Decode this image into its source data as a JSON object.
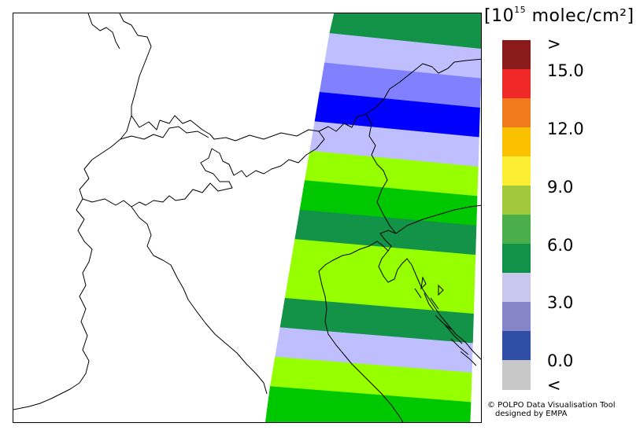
{
  "legend": {
    "title_prefix": "[10",
    "title_exp": "15",
    "title_suffix": " molec/cm²]",
    "colors": [
      "#8b1a1a",
      "#f02828",
      "#f07a1e",
      "#fbc100",
      "#fbee33",
      "#a2c93b",
      "#4aae4a",
      "#109249",
      "#c8c8ee",
      "#8585c8",
      "#2e4fa5",
      "#c8c8c8"
    ],
    "labels": [
      ">",
      "15.0",
      "12.0",
      "9.0",
      "6.0",
      "3.0",
      "0.0",
      "<"
    ]
  },
  "bands": [
    {
      "color": "#139347",
      "value": 5.5
    },
    {
      "color": "#bfbfff",
      "value": 3.5
    },
    {
      "color": "#8181ff",
      "value": 2.0
    },
    {
      "color": "#0000ff",
      "value": 0.5
    },
    {
      "color": "#bfbfff",
      "value": 3.5
    },
    {
      "color": "#96ff00",
      "value": 7.5
    },
    {
      "color": "#00c800",
      "value": 6.5
    },
    {
      "color": "#139347",
      "value": 5.5
    },
    {
      "color": "#96ff00",
      "value": 7.5
    },
    {
      "color": "#96ff00",
      "value": 7.5
    },
    {
      "color": "#139347",
      "value": 5.5
    },
    {
      "color": "#bfbfff",
      "value": 3.5
    },
    {
      "color": "#96ff00",
      "value": 7.5
    },
    {
      "color": "#00c800",
      "value": 6.5
    }
  ],
  "credit": {
    "line1": "© POLPO Data Visualisation Tool",
    "line2": "designed by EMPA"
  }
}
